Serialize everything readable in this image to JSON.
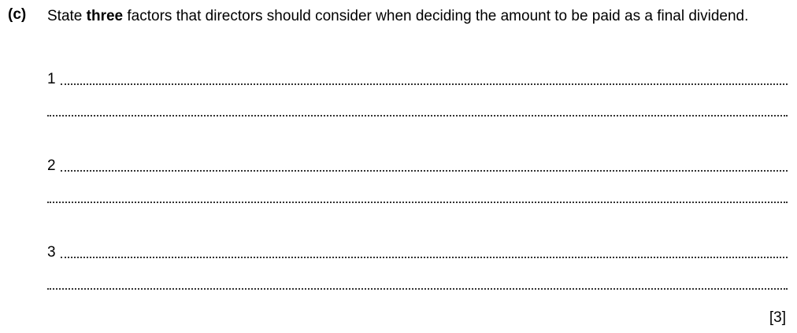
{
  "question": {
    "label": "(c)",
    "text_before": "State ",
    "bold": "three",
    "text_after": " factors that directors should consider when deciding the amount to be paid as a final dividend.",
    "answers": [
      "1",
      "",
      "2",
      "",
      "3",
      ""
    ],
    "marks": "[3]"
  }
}
